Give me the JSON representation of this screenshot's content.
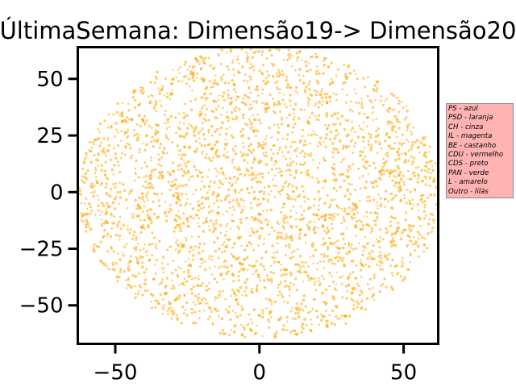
{
  "chart_data": {
    "type": "scatter",
    "title": "ÚltimaSemana: Dimensão19-> Dimensão20",
    "xlabel": "",
    "ylabel": "",
    "xlim": [
      -63,
      62
    ],
    "ylim": [
      -67,
      64
    ],
    "xticks": [
      -50,
      0,
      50
    ],
    "xtick_labels": [
      "−50",
      "0",
      "50"
    ],
    "yticks": [
      -50,
      -25,
      0,
      25,
      50
    ],
    "ytick_labels": [
      "−50",
      "−25",
      "0",
      "25",
      "50"
    ],
    "grid": false,
    "point_color": "#ffa500",
    "point_opacity": 0.55,
    "distribution": {
      "shape": "approximately circular cloud",
      "center": [
        0,
        0
      ],
      "radius": 63,
      "approx_points": 3000
    },
    "sample_points": [
      {
        "x": -10,
        "y": 62
      },
      {
        "x": 14,
        "y": 62
      },
      {
        "x": 25,
        "y": 57
      },
      {
        "x": -28,
        "y": 49
      },
      {
        "x": 34,
        "y": 50
      },
      {
        "x": -46,
        "y": 33
      },
      {
        "x": 45,
        "y": 37
      },
      {
        "x": -56,
        "y": 14
      },
      {
        "x": 54,
        "y": 22
      },
      {
        "x": -59,
        "y": -5
      },
      {
        "x": 60,
        "y": -10
      },
      {
        "x": -55,
        "y": -22
      },
      {
        "x": 55,
        "y": -24
      },
      {
        "x": -42,
        "y": -45
      },
      {
        "x": 44,
        "y": -42
      },
      {
        "x": -30,
        "y": -54
      },
      {
        "x": 30,
        "y": -58
      },
      {
        "x": -5,
        "y": -64
      },
      {
        "x": 13,
        "y": -63
      },
      {
        "x": 0,
        "y": 0
      }
    ]
  },
  "legend": {
    "placement": "outside right",
    "background": "#ffb3b3",
    "entries": [
      "PS - azul",
      "PSD - laranja",
      "CH - cinza",
      "IL - magenta",
      "BE - castanho",
      "CDU - vermelho",
      "CDS - preto",
      "PAN - verde",
      "L - amarelo",
      "Outro - lilás"
    ]
  }
}
